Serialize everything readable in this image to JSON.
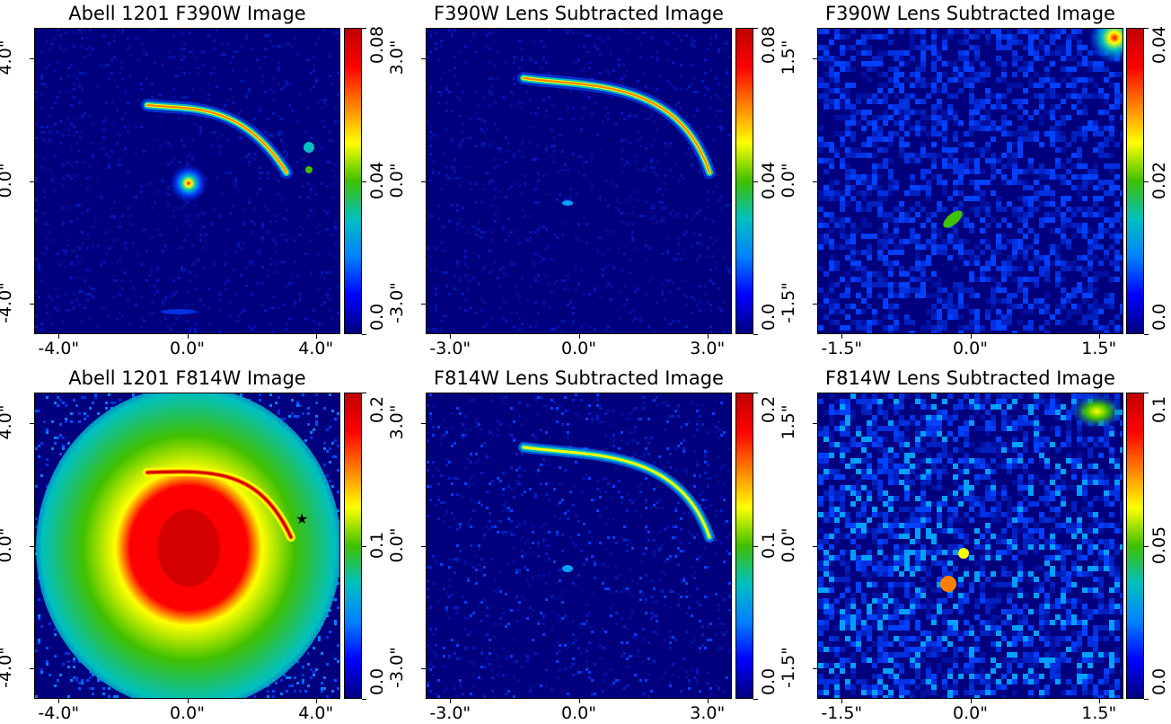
{
  "figure": {
    "panels": [
      {
        "id": "p1",
        "title": "Abell 1201 F390W Image",
        "xticks": [
          "-4.0\"",
          "0.0\"",
          "4.0\""
        ],
        "yticks": [
          "4.0\"",
          "0.0\"",
          "-4.0\""
        ],
        "cbar_ticks": [
          "0.0",
          "0.04",
          "0.08"
        ],
        "variant": "image390"
      },
      {
        "id": "p2",
        "title": "F390W Lens Subtracted Image",
        "xticks": [
          "-3.0\"",
          "0.0\"",
          "3.0\""
        ],
        "yticks": [
          "3.0\"",
          "0.0\"",
          "-3.0\""
        ],
        "cbar_ticks": [
          "0.0",
          "0.04",
          "0.08"
        ],
        "variant": "sub390"
      },
      {
        "id": "p3",
        "title": "F390W Lens Subtracted Image",
        "xticks": [
          "-1.5\"",
          "0.0\"",
          "1.5\""
        ],
        "yticks": [
          "1.5\"",
          "0.0\"",
          "-1.5\""
        ],
        "cbar_ticks": [
          "0.0",
          "0.02",
          "0.04"
        ],
        "variant": "zoom390"
      },
      {
        "id": "p4",
        "title": "Abell 1201 F814W Image",
        "xticks": [
          "-4.0\"",
          "0.0\"",
          "4.0\""
        ],
        "yticks": [
          "4.0\"",
          "0.0\"",
          "-4.0\""
        ],
        "cbar_ticks": [
          "0.0",
          "0.1",
          "0.2"
        ],
        "variant": "image814"
      },
      {
        "id": "p5",
        "title": "F814W Lens Subtracted Image",
        "xticks": [
          "-3.0\"",
          "0.0\"",
          "3.0\""
        ],
        "yticks": [
          "3.0\"",
          "0.0\"",
          "-3.0\""
        ],
        "cbar_ticks": [
          "0.0",
          "0.1",
          "0.2"
        ],
        "variant": "sub814"
      },
      {
        "id": "p6",
        "title": "F814W Lens Subtracted Image",
        "xticks": [
          "-1.5\"",
          "0.0\"",
          "1.5\""
        ],
        "yticks": [
          "1.5\"",
          "0.0\"",
          "-1.5\""
        ],
        "cbar_ticks": [
          "0.0",
          "0.05",
          "0.1"
        ],
        "variant": "zoom814"
      }
    ],
    "colormap": [
      "#00007f",
      "#0000ff",
      "#0080ff",
      "#00c0c0",
      "#40c000",
      "#ffff00",
      "#ff8000",
      "#ff0000",
      "#c00000"
    ],
    "background_color": "#0a1a9a",
    "marker_icon": "star-icon"
  }
}
